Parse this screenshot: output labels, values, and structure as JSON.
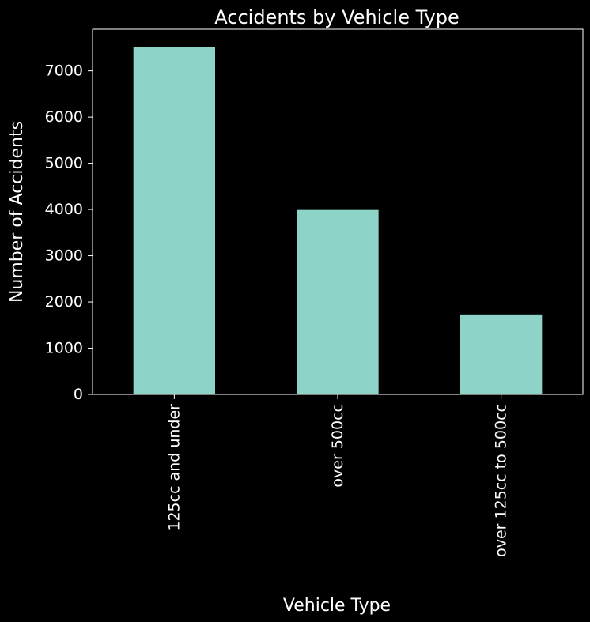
{
  "colors": {
    "background": "#000000",
    "foreground": "#ffffff",
    "bar": "#8dd3c7"
  },
  "chart_data": {
    "type": "bar",
    "title": "Accidents by Vehicle Type",
    "xlabel": "Vehicle Type",
    "ylabel": "Number of Accidents",
    "categories": [
      "125cc and under",
      "over 500cc",
      "over 125cc to 500cc"
    ],
    "values": [
      7510,
      3990,
      1730
    ],
    "ylim": [
      0,
      7900
    ],
    "yticks": [
      0,
      1000,
      2000,
      3000,
      4000,
      5000,
      6000,
      7000
    ],
    "grid": false,
    "legend": "none"
  }
}
